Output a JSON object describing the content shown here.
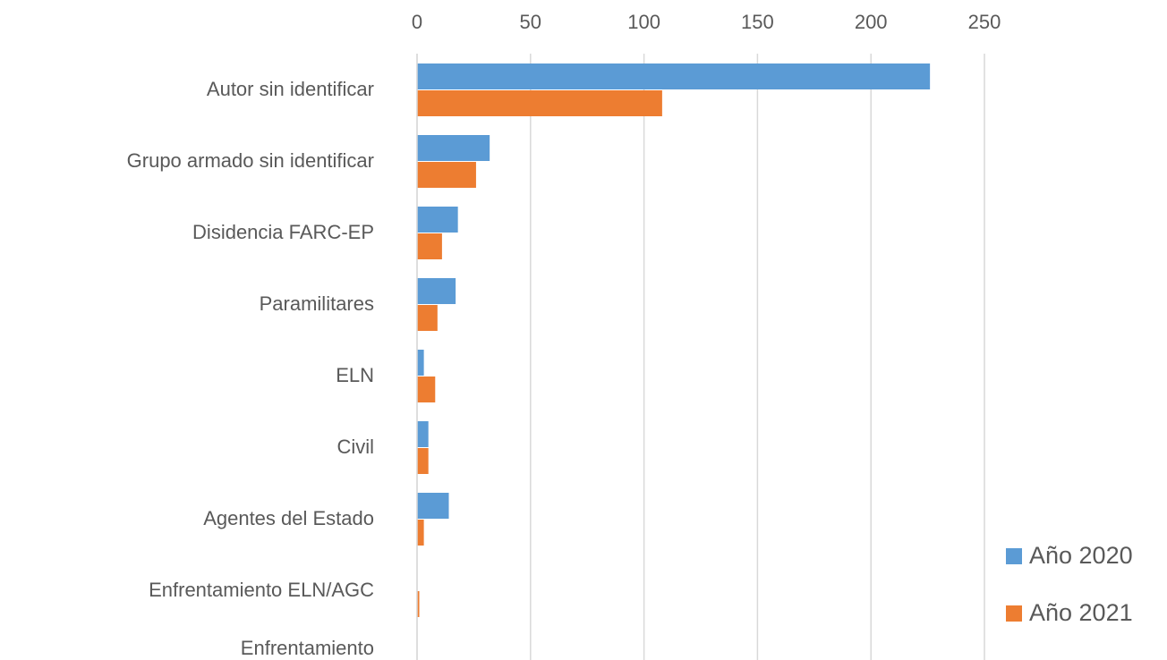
{
  "chart_data": {
    "type": "bar",
    "orientation": "horizontal",
    "categories": [
      "Autor sin identificar",
      "Grupo armado sin identificar",
      "Disidencia FARC-EP",
      "Paramilitares",
      "ELN",
      "Civil",
      "Agentes del Estado",
      "Enfrentamiento ELN/AGC",
      "Enfrentamiento Paramilitares/Ejército Nacional"
    ],
    "series": [
      {
        "name": "Año 2020",
        "color": "#5b9bd5",
        "values": [
          226,
          32,
          18,
          17,
          3,
          5,
          14,
          0,
          0
        ]
      },
      {
        "name": "Año 2021",
        "color": "#ed7d31",
        "values": [
          108,
          26,
          11,
          9,
          8,
          5,
          3,
          1,
          1
        ]
      }
    ],
    "xlim": [
      0,
      250
    ],
    "xticks": [
      0,
      50,
      100,
      150,
      200,
      250
    ],
    "grid": true,
    "legend": "bottom-right"
  }
}
